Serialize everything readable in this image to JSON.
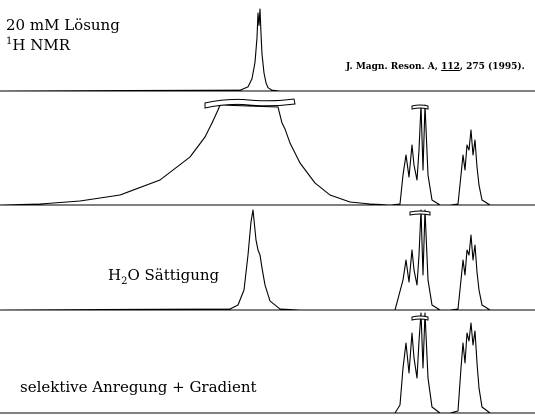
{
  "labels": {
    "concentration": "20 mM Lösung",
    "nucleus_sup": "1",
    "nucleus": "H NMR",
    "reference_prefix": "J. Magn. Reson. A, ",
    "reference_volume": "112",
    "reference_suffix": ", 275 (1995).",
    "saturation_prefix": "H",
    "saturation_sub": "2",
    "saturation_suffix": "O Sättigung",
    "selective": "selektive Anregung + Gradient"
  },
  "chart_data": [
    {
      "type": "line",
      "series": [
        {
          "x": [
            0,
            240,
            248,
            252,
            255,
            257,
            258,
            259,
            260,
            261,
            262,
            264,
            266,
            268,
            272,
            280,
            500
          ],
          "y": [
            0.0,
            0.01,
            0.05,
            0.15,
            0.35,
            0.65,
            0.95,
            0.8,
            1.0,
            0.7,
            0.45,
            0.22,
            0.1,
            0.04,
            0.01,
            0.0,
            0.0
          ]
        }
      ]
    },
    {
      "type": "line",
      "series": [
        {
          "x": [
            0,
            40,
            80,
            120,
            160,
            190,
            205,
            212,
            218,
            220,
            278,
            282,
            285,
            290,
            300,
            315,
            330,
            350,
            370,
            390,
            400,
            403,
            406,
            409,
            412,
            414,
            417,
            419,
            421,
            423,
            425,
            428,
            432,
            440,
            450,
            458,
            461,
            463,
            465,
            467,
            469,
            471,
            473,
            475,
            477,
            479,
            482,
            490,
            505,
            535
          ],
          "y": [
            0.0,
            0.01,
            0.04,
            0.1,
            0.25,
            0.48,
            0.68,
            0.82,
            0.95,
            1.0,
            0.98,
            0.82,
            0.76,
            0.62,
            0.42,
            0.22,
            0.1,
            0.03,
            0.01,
            0.0,
            0.01,
            0.3,
            0.5,
            0.28,
            0.6,
            0.4,
            0.25,
            0.55,
            1.0,
            0.35,
            1.0,
            0.3,
            0.05,
            0.0,
            0.0,
            0.01,
            0.3,
            0.5,
            0.35,
            0.6,
            0.55,
            0.75,
            0.5,
            0.65,
            0.38,
            0.2,
            0.05,
            0.0,
            0.0,
            0.0
          ]
        }
      ]
    },
    {
      "type": "line",
      "series": [
        {
          "x": [
            0,
            230,
            238,
            244,
            248,
            251,
            253,
            255,
            256,
            258,
            260,
            262,
            265,
            270,
            280,
            300,
            370,
            395,
            403,
            406,
            409,
            412,
            414,
            417,
            419,
            421,
            423,
            425,
            428,
            432,
            440,
            450,
            458,
            461,
            463,
            465,
            467,
            469,
            471,
            473,
            475,
            477,
            479,
            482,
            490,
            505,
            535
          ],
          "y": [
            0.0,
            0.01,
            0.05,
            0.2,
            0.55,
            0.88,
            1.0,
            0.8,
            0.7,
            0.6,
            0.55,
            0.42,
            0.25,
            0.09,
            0.01,
            0.0,
            0.0,
            0.0,
            0.3,
            0.5,
            0.28,
            0.6,
            0.4,
            0.25,
            0.55,
            1.0,
            0.35,
            1.0,
            0.3,
            0.05,
            0.0,
            0.0,
            0.01,
            0.3,
            0.5,
            0.35,
            0.6,
            0.55,
            0.75,
            0.5,
            0.65,
            0.38,
            0.2,
            0.05,
            0.0,
            0.0,
            0.0
          ]
        }
      ]
    },
    {
      "type": "line",
      "series": [
        {
          "x": [
            0,
            395,
            400,
            403,
            406,
            409,
            412,
            414,
            417,
            419,
            421,
            423,
            425,
            428,
            432,
            440,
            450,
            458,
            461,
            463,
            465,
            467,
            469,
            471,
            473,
            475,
            477,
            479,
            482,
            490,
            505,
            535
          ],
          "y": [
            0.0,
            0.0,
            0.08,
            0.45,
            0.7,
            0.4,
            0.8,
            0.55,
            0.35,
            0.72,
            1.0,
            0.45,
            1.0,
            0.35,
            0.06,
            0.0,
            0.0,
            0.02,
            0.45,
            0.7,
            0.5,
            0.8,
            0.72,
            0.9,
            0.68,
            0.82,
            0.5,
            0.25,
            0.06,
            0.0,
            0.0,
            0.0
          ]
        }
      ]
    }
  ]
}
